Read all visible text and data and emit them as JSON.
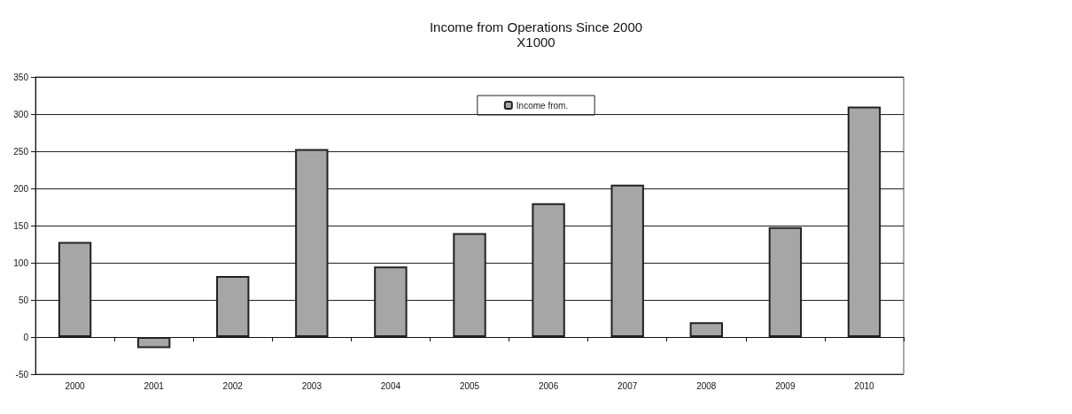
{
  "chart_data": {
    "type": "bar",
    "title": "Income from Operations Since 2000",
    "subtitle": "X1000",
    "categories": [
      "2000",
      "2001",
      "2002",
      "2003",
      "2004",
      "2005",
      "2006",
      "2007",
      "2008",
      "2009",
      "2010"
    ],
    "series": [
      {
        "name": "Income from.",
        "color": "#a6a6a6",
        "values": [
          128,
          -15,
          82,
          253,
          95,
          140,
          180,
          205,
          20,
          148,
          310
        ]
      }
    ],
    "ylim": [
      -50,
      350
    ],
    "yticks": [
      -50,
      0,
      50,
      100,
      150,
      200,
      250,
      300,
      350
    ],
    "grid": "y",
    "legend": "top"
  }
}
